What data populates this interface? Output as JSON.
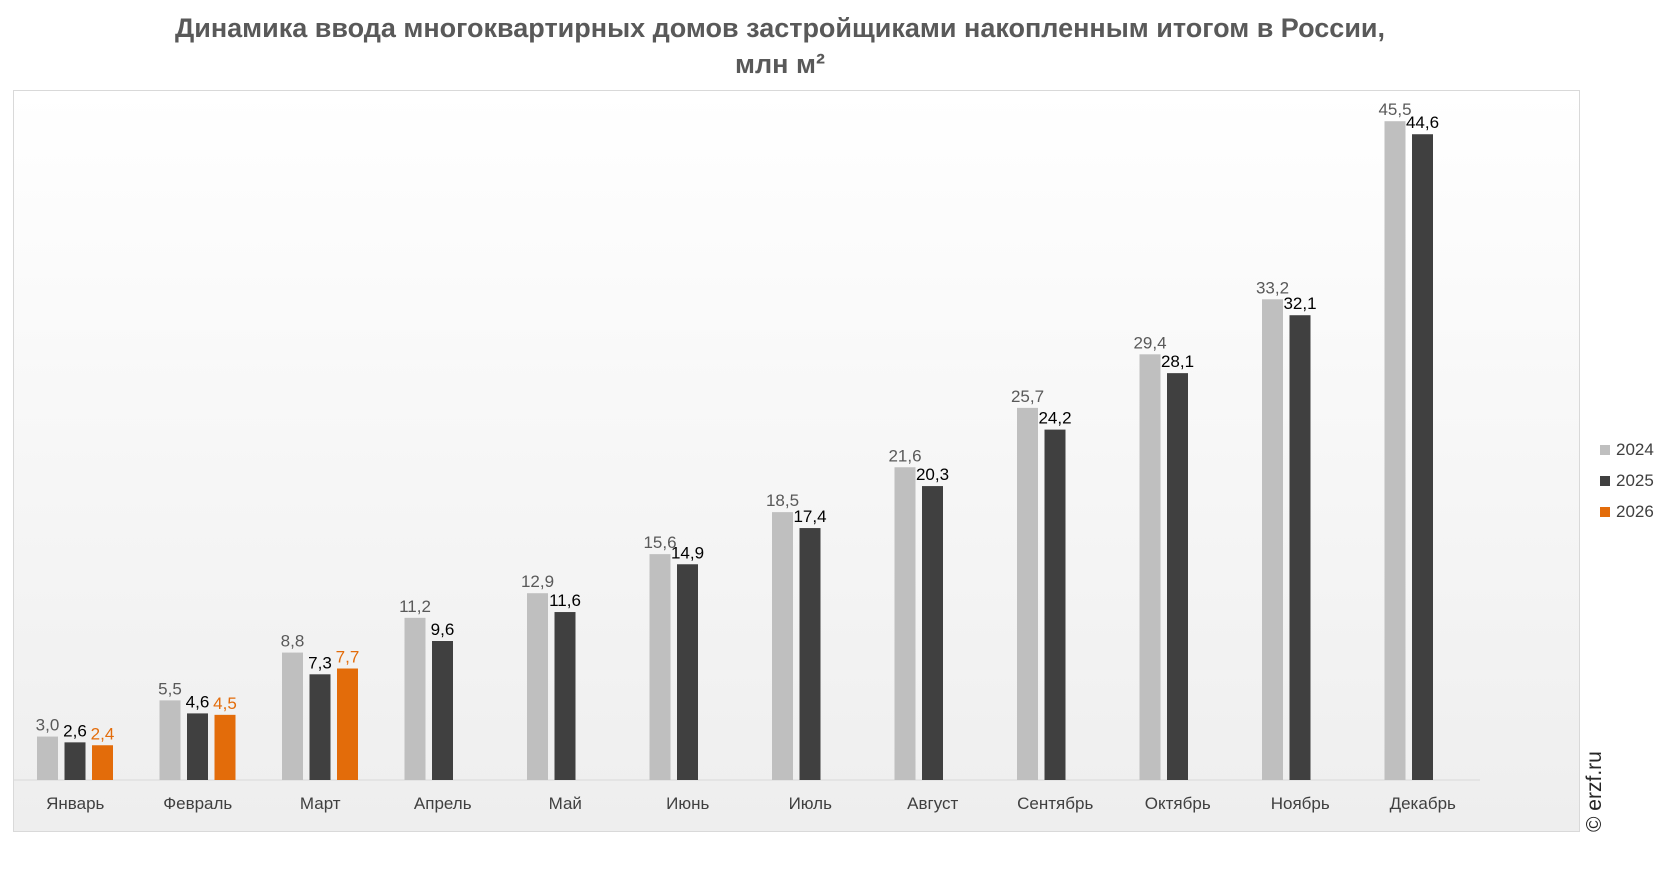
{
  "chart_data": {
    "type": "bar",
    "title": "Динамика ввода многоквартирных домов застройщиками накопленным итогом в России, млн м²",
    "categories": [
      "Январь",
      "Февраль",
      "Март",
      "Апрель",
      "Май",
      "Июнь",
      "Июль",
      "Август",
      "Сентябрь",
      "Октябрь",
      "Ноябрь",
      "Декабрь"
    ],
    "series": [
      {
        "name": "2024",
        "color": "#bfbfbf",
        "label_color": "#595959",
        "values": [
          3.0,
          5.5,
          8.8,
          11.2,
          12.9,
          15.6,
          18.5,
          21.6,
          25.7,
          29.4,
          33.2,
          45.5
        ],
        "labels": [
          "3,0",
          "5,5",
          "8,8",
          "11,2",
          "12,9",
          "15,6",
          "18,5",
          "21,6",
          "25,7",
          "29,4",
          "33,2",
          "45,5"
        ]
      },
      {
        "name": "2025",
        "color": "#404040",
        "label_color": "#000000",
        "values": [
          2.6,
          4.6,
          7.3,
          9.6,
          11.6,
          14.9,
          17.4,
          20.3,
          24.2,
          28.1,
          32.1,
          44.6
        ],
        "labels": [
          "2,6",
          "4,6",
          "7,3",
          "9,6",
          "11,6",
          "14,9",
          "17,4",
          "20,3",
          "24,2",
          "28,1",
          "32,1",
          "44,6"
        ]
      },
      {
        "name": "2026",
        "color": "#e36c0a",
        "label_color": "#e36c0a",
        "values": [
          2.4,
          4.5,
          7.7,
          null,
          null,
          null,
          null,
          null,
          null,
          null,
          null,
          null
        ],
        "labels": [
          "2,4",
          "4,5",
          "7,7",
          "",
          "",
          "",
          "",
          "",
          "",
          "",
          "",
          ""
        ]
      }
    ],
    "ylim": [
      0,
      48
    ],
    "grid": false,
    "legend_position": "right"
  },
  "watermark": "© erzf.ru"
}
